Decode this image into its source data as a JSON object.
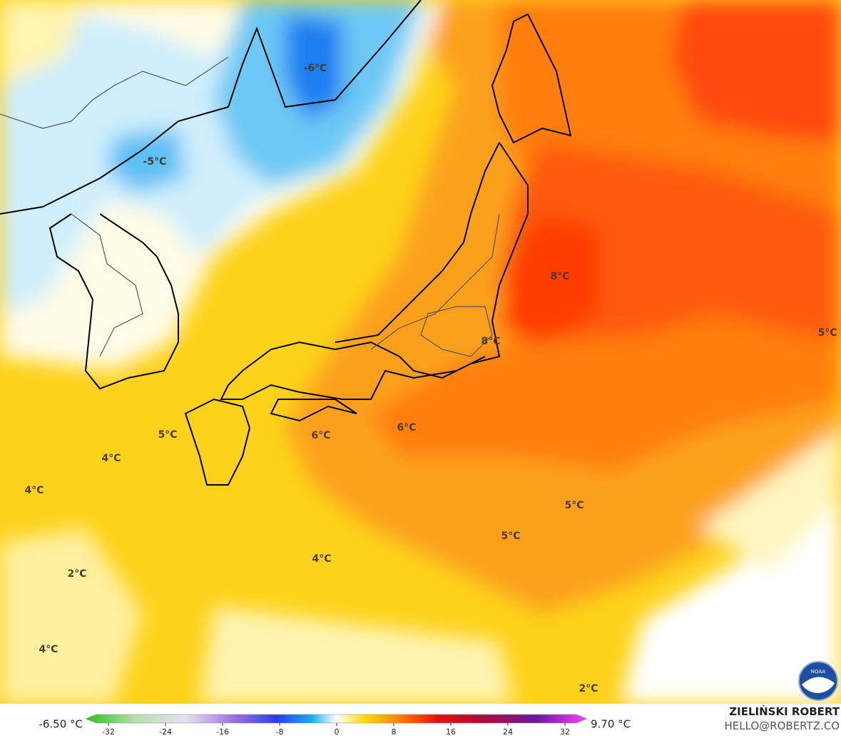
{
  "map": {
    "labels": [
      "-6°C",
      "-5°C",
      "8°C",
      "8°C",
      "5°C",
      "6°C",
      "6°C",
      "5°C",
      "4°C",
      "4°C",
      "5°C",
      "5°C",
      "4°C",
      "2°C",
      "4°C",
      "2°C"
    ],
    "colorbar": {
      "min_label": "-6.50 °C",
      "max_label": "9.70 °C",
      "lim": [
        -35.2,
        35.1
      ],
      "ticks": [
        -32,
        -24,
        -16,
        -8,
        0,
        8,
        16,
        24,
        32
      ]
    },
    "credit": {
      "name": "ZIELIŃSKI ROBERT",
      "email": "HELLO@ROBERTZ.CO",
      "logo": "NOAA"
    }
  }
}
